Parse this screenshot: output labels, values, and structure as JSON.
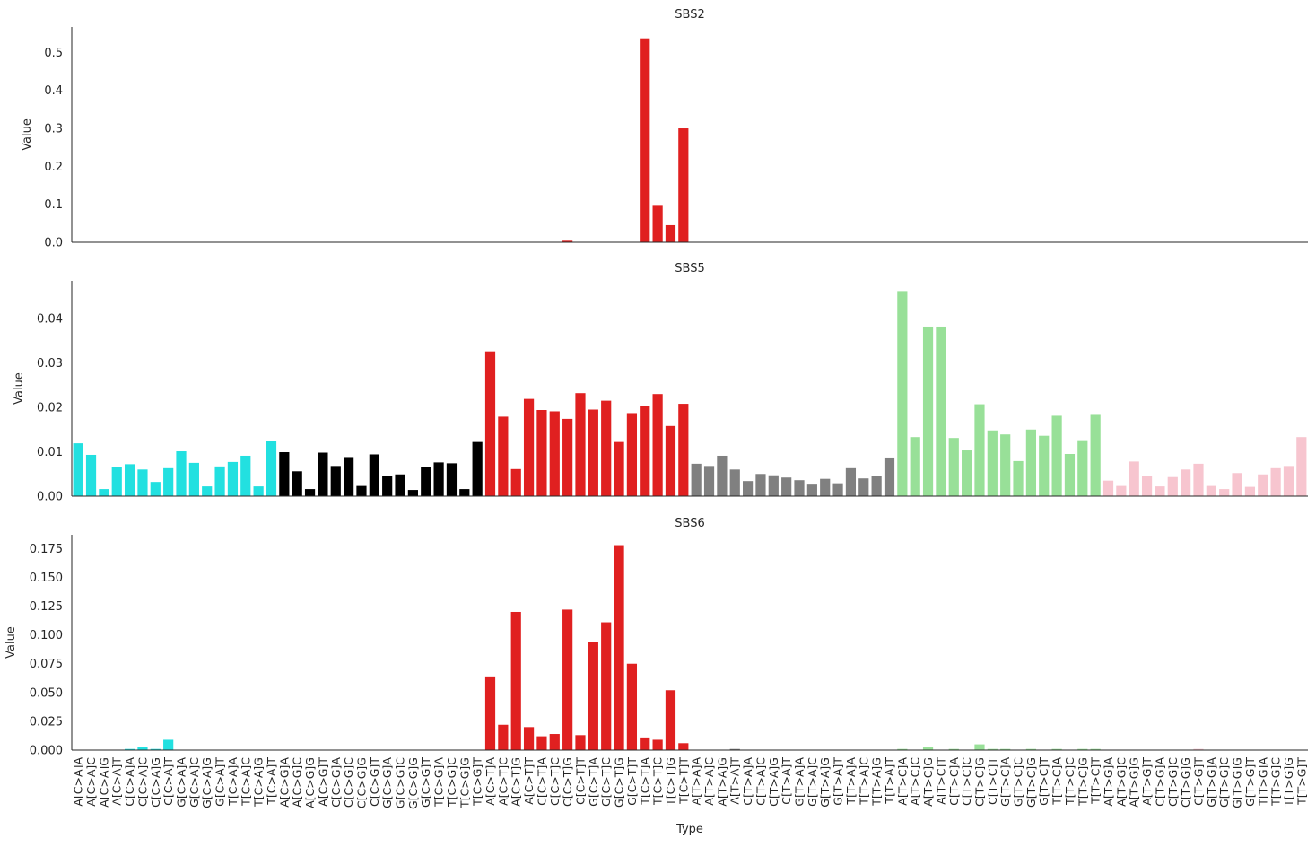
{
  "chart_data": {
    "type": "bar",
    "xlabel": "Type",
    "ylabel": "Value",
    "colors": {
      "C>A": "#22e0e0",
      "C>G": "#000000",
      "C>T": "#e02020",
      "T>A": "#808080",
      "T>C": "#98e098",
      "T>G": "#f7c5cf"
    },
    "categories": [
      "A[C>A]A",
      "A[C>A]C",
      "A[C>A]G",
      "A[C>A]T",
      "C[C>A]A",
      "C[C>A]C",
      "C[C>A]G",
      "C[C>A]T",
      "G[C>A]A",
      "G[C>A]C",
      "G[C>A]G",
      "G[C>A]T",
      "T[C>A]A",
      "T[C>A]C",
      "T[C>A]G",
      "T[C>A]T",
      "A[C>G]A",
      "A[C>G]C",
      "A[C>G]G",
      "A[C>G]T",
      "C[C>G]A",
      "C[C>G]C",
      "C[C>G]G",
      "C[C>G]T",
      "G[C>G]A",
      "G[C>G]C",
      "G[C>G]G",
      "G[C>G]T",
      "T[C>G]A",
      "T[C>G]C",
      "T[C>G]G",
      "T[C>G]T",
      "A[C>T]A",
      "A[C>T]C",
      "A[C>T]G",
      "A[C>T]T",
      "C[C>T]A",
      "C[C>T]C",
      "C[C>T]G",
      "C[C>T]T",
      "G[C>T]A",
      "G[C>T]C",
      "G[C>T]G",
      "G[C>T]T",
      "T[C>T]A",
      "T[C>T]C",
      "T[C>T]G",
      "T[C>T]T",
      "A[T>A]A",
      "A[T>A]C",
      "A[T>A]G",
      "A[T>A]T",
      "C[T>A]A",
      "C[T>A]C",
      "C[T>A]G",
      "C[T>A]T",
      "G[T>A]A",
      "G[T>A]C",
      "G[T>A]G",
      "G[T>A]T",
      "T[T>A]A",
      "T[T>A]C",
      "T[T>A]G",
      "T[T>A]T",
      "A[T>C]A",
      "A[T>C]C",
      "A[T>C]G",
      "A[T>C]T",
      "C[T>C]A",
      "C[T>C]C",
      "C[T>C]G",
      "C[T>C]T",
      "G[T>C]A",
      "G[T>C]C",
      "G[T>C]G",
      "G[T>C]T",
      "T[T>C]A",
      "T[T>C]C",
      "T[T>C]G",
      "T[T>C]T",
      "A[T>G]A",
      "A[T>G]C",
      "A[T>G]G",
      "A[T>G]T",
      "C[T>G]A",
      "C[T>G]C",
      "C[T>G]G",
      "C[T>G]T",
      "G[T>G]A",
      "G[T>G]C",
      "G[T>G]G",
      "G[T>G]T",
      "T[T>G]A",
      "T[T>G]C",
      "T[T>G]G",
      "T[T>G]T"
    ],
    "panels": [
      {
        "title": "SBS2",
        "ylim": [
          0,
          0.567
        ],
        "yticks": [
          "0.0",
          "0.1",
          "0.2",
          "0.3",
          "0.4",
          "0.5"
        ],
        "values": [
          0,
          0,
          0,
          0,
          0,
          0,
          0,
          0,
          0,
          0,
          0,
          0,
          0,
          0,
          0,
          0,
          0,
          0,
          0,
          0,
          0,
          0,
          0,
          0,
          0,
          0,
          0,
          0,
          0,
          0,
          0,
          0,
          0,
          0,
          0,
          0,
          0,
          0,
          0.004,
          0,
          0,
          0,
          0,
          0,
          0.537,
          0.096,
          0.045,
          0.3,
          0,
          0,
          0,
          0,
          0,
          0,
          0,
          0,
          0,
          0,
          0,
          0,
          0,
          0,
          0,
          0,
          0,
          0,
          0,
          0,
          0,
          0,
          0,
          0,
          0,
          0,
          0,
          0,
          0,
          0,
          0,
          0,
          0,
          0,
          0,
          0,
          0,
          0,
          0,
          0,
          0,
          0,
          0,
          0,
          0,
          0,
          0,
          0
        ]
      },
      {
        "title": "SBS5",
        "ylim": [
          0,
          0.0485
        ],
        "yticks": [
          "0.00",
          "0.01",
          "0.02",
          "0.03",
          "0.04"
        ],
        "values": [
          0.0119,
          0.0093,
          0.0016,
          0.0066,
          0.0072,
          0.006,
          0.0032,
          0.0063,
          0.0101,
          0.0075,
          0.0022,
          0.0067,
          0.0077,
          0.0091,
          0.0022,
          0.0125,
          0.0099,
          0.0056,
          0.0016,
          0.0098,
          0.0068,
          0.0088,
          0.0023,
          0.0094,
          0.0046,
          0.0049,
          0.0014,
          0.0066,
          0.0076,
          0.0074,
          0.0016,
          0.0122,
          0.0326,
          0.0179,
          0.0061,
          0.0219,
          0.0194,
          0.0191,
          0.0174,
          0.0232,
          0.0195,
          0.0215,
          0.0122,
          0.0187,
          0.0203,
          0.023,
          0.0158,
          0.0208,
          0.0073,
          0.0068,
          0.0091,
          0.006,
          0.0034,
          0.005,
          0.0047,
          0.0042,
          0.0036,
          0.0028,
          0.0039,
          0.0029,
          0.0063,
          0.004,
          0.0045,
          0.0087,
          0.0462,
          0.0133,
          0.0382,
          0.0382,
          0.0131,
          0.0103,
          0.0207,
          0.0148,
          0.0139,
          0.0079,
          0.015,
          0.0136,
          0.0181,
          0.0095,
          0.0126,
          0.0185,
          0.0035,
          0.0023,
          0.0078,
          0.0046,
          0.0022,
          0.0043,
          0.006,
          0.0073,
          0.0023,
          0.0016,
          0.0052,
          0.0021,
          0.0049,
          0.0063,
          0.0068,
          0.0133
        ]
      },
      {
        "title": "SBS6",
        "ylim": [
          0,
          0.187
        ],
        "yticks": [
          "0.000",
          "0.025",
          "0.050",
          "0.075",
          "0.100",
          "0.125",
          "0.150",
          "0.175"
        ],
        "values": [
          0,
          0,
          0,
          0,
          0.001,
          0.003,
          0.001,
          0.009,
          0,
          0,
          0,
          0,
          0,
          0,
          0,
          0,
          0,
          0,
          0,
          0,
          0,
          0,
          0,
          0,
          0,
          0,
          0,
          0,
          0,
          0,
          0,
          0,
          0.064,
          0.022,
          0.12,
          0.02,
          0.012,
          0.014,
          0.122,
          0.013,
          0.094,
          0.111,
          0.178,
          0.075,
          0.011,
          0.009,
          0.052,
          0.006,
          0,
          0,
          0,
          0.001,
          0,
          0,
          0,
          0,
          0,
          0,
          0,
          0,
          0,
          0,
          0,
          0,
          0.001,
          0,
          0.003,
          0,
          0.001,
          0,
          0.005,
          0.001,
          0.001,
          0,
          0.001,
          0,
          0.001,
          0,
          0.001,
          0.001,
          0,
          0,
          0,
          0,
          0,
          0,
          0,
          0.001,
          0,
          0,
          0,
          0,
          0,
          0,
          0,
          0
        ]
      }
    ]
  }
}
